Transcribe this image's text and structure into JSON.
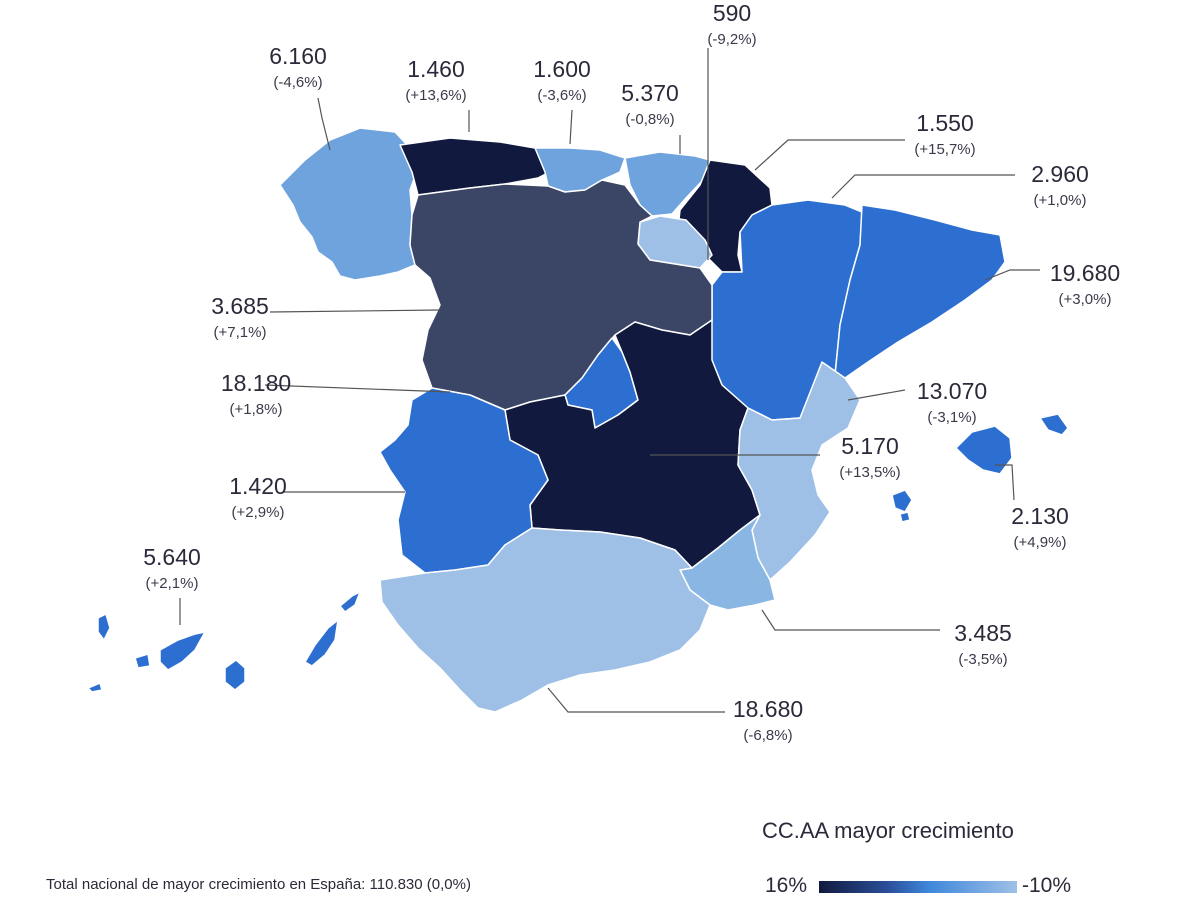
{
  "regions": [
    {
      "id": "galicia",
      "value": "6.160",
      "change": "(-4,6%)",
      "color": "#6fa3dd"
    },
    {
      "id": "asturias",
      "value": "1.460",
      "change": "(+13,6%)",
      "color": "#111a3e"
    },
    {
      "id": "cantabria",
      "value": "1.600",
      "change": "(-3,6%)",
      "color": "#6fa3dd"
    },
    {
      "id": "pais-vasco",
      "value": "5.370",
      "change": "(-0,8%)",
      "color": "#6fa3dd"
    },
    {
      "id": "navarra",
      "value": "590",
      "change": "(-9,2%)",
      "color": "#111a3e"
    },
    {
      "id": "la-rioja",
      "value": "1.550",
      "change": "(+15,7%)",
      "color": "#9ec0e6"
    },
    {
      "id": "aragon",
      "value": "2.960",
      "change": "(+1,0%)",
      "color": "#2d6fd0"
    },
    {
      "id": "cataluna",
      "value": "19.680",
      "change": "(+3,0%)",
      "color": "#2d6fd0"
    },
    {
      "id": "castilla-y-leon",
      "value": "3.685",
      "change": "(+7,1%)",
      "color": "#3b4566"
    },
    {
      "id": "madrid",
      "value": "18.180",
      "change": "(+1,8%)",
      "color": "#2d6fd0"
    },
    {
      "id": "comunidad-valenciana",
      "value": "13.070",
      "change": "(-3,1%)",
      "color": "#9ec0e6"
    },
    {
      "id": "castilla-la-mancha",
      "value": "5.170",
      "change": "(+13,5%)",
      "color": "#111a3e"
    },
    {
      "id": "extremadura",
      "value": "1.420",
      "change": "(+2,9%)",
      "color": "#2d6fd0"
    },
    {
      "id": "baleares",
      "value": "2.130",
      "change": "(+4,9%)",
      "color": "#2d6fd0"
    },
    {
      "id": "canarias",
      "value": "5.640",
      "change": "(+2,1%)",
      "color": "#2d6fd0"
    },
    {
      "id": "murcia",
      "value": "3.485",
      "change": "(-3,5%)",
      "color": "#8ab6e4"
    },
    {
      "id": "andalucia",
      "value": "18.680",
      "change": "(-6,8%)",
      "color": "#9ec0e6"
    }
  ],
  "legend": {
    "title": "CC.AA mayor crecimiento",
    "min_label": "16%",
    "max_label": "-10%"
  },
  "footer": {
    "note": "Total nacional de mayor crecimiento en España: 110.830 (0,0%)"
  }
}
